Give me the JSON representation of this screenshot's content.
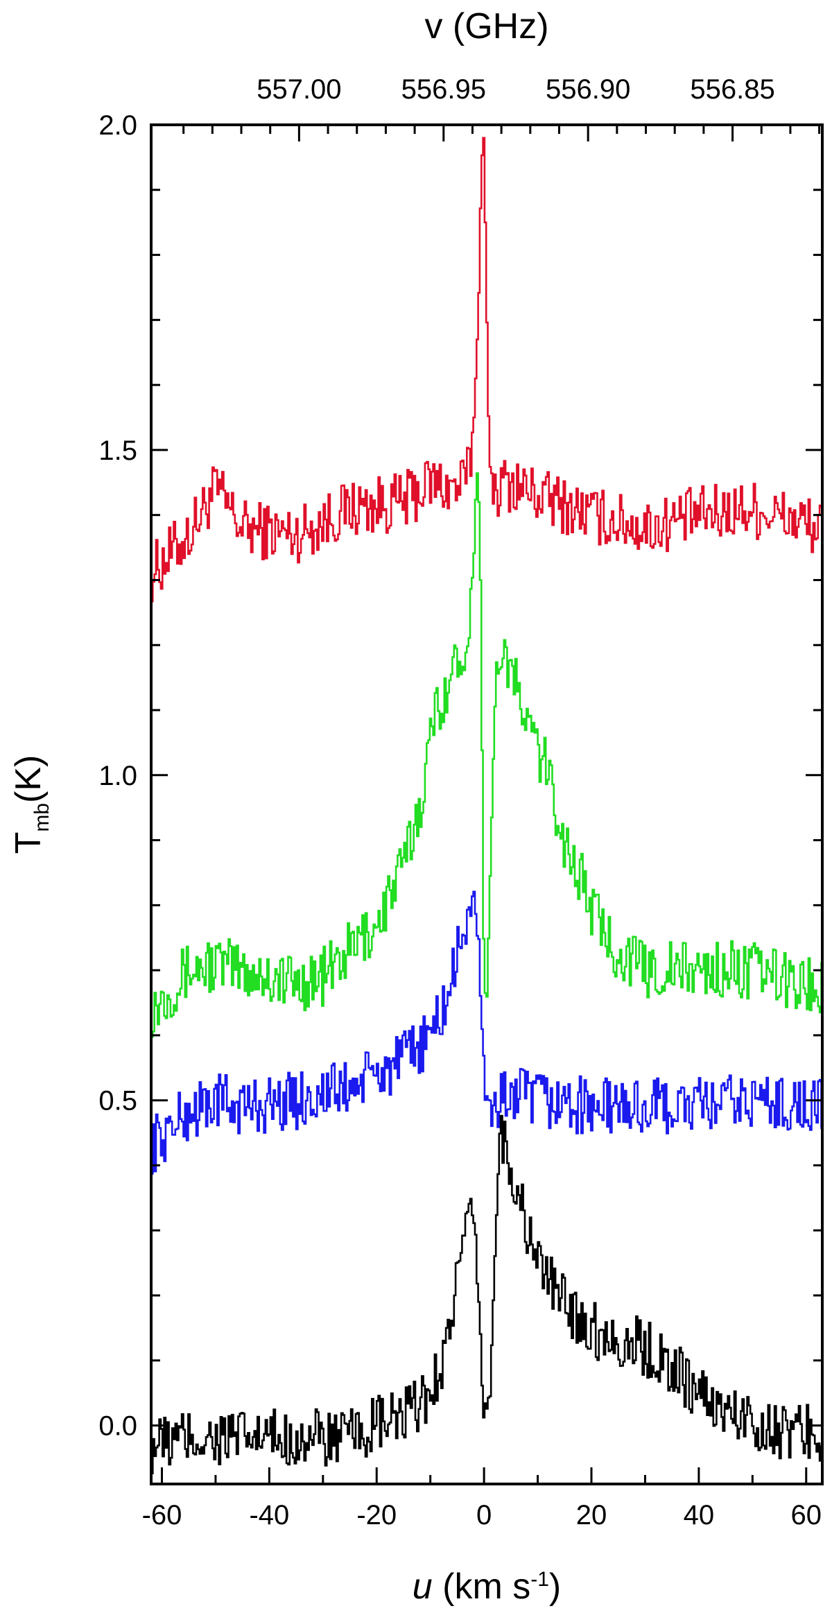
{
  "chart_data": {
    "type": "line",
    "top_axis": {
      "label": "v (GHz)",
      "tick_labels": [
        "557.00",
        "556.95",
        "556.90",
        "556.85"
      ],
      "ticks_ghz": [
        557.0,
        556.95,
        556.9,
        556.85
      ],
      "rest_frequency_ghz": 556.936,
      "velocity_per_ghz": -538.2
    },
    "x_axis": {
      "label_italic": "u",
      "label_rest": " (km s",
      "label_sup": "-1",
      "label_end": ")",
      "range": [
        -62,
        63
      ],
      "tick_labels": [
        "-60",
        "-40",
        "-20",
        "0",
        "20",
        "40",
        "60"
      ],
      "ticks": [
        -60,
        -40,
        -20,
        0,
        20,
        40,
        60
      ]
    },
    "y_axis": {
      "label_main": "T",
      "label_sub": "mb",
      "label_end": "(K)",
      "range": [
        -0.09,
        2.0
      ],
      "tick_labels": [
        "0.0",
        "0.5",
        "1.0",
        "1.5",
        "2.0"
      ],
      "ticks": [
        0.0,
        0.5,
        1.0,
        1.5,
        2.0
      ]
    },
    "series": [
      {
        "color": "#e0102a",
        "style": "histogram",
        "points": [
          [
            -62,
            1.31
          ],
          [
            -55,
            1.37
          ],
          [
            -50,
            1.44
          ],
          [
            -45,
            1.38
          ],
          [
            -35,
            1.37
          ],
          [
            -25,
            1.41
          ],
          [
            -15,
            1.42
          ],
          [
            -10,
            1.45
          ],
          [
            -5,
            1.44
          ],
          [
            -3,
            1.46
          ],
          [
            -2,
            1.52
          ],
          [
            -1,
            1.72
          ],
          [
            -0.4,
            1.98
          ],
          [
            0,
            1.98
          ],
          [
            0.5,
            1.72
          ],
          [
            1,
            1.48
          ],
          [
            2,
            1.44
          ],
          [
            5,
            1.45
          ],
          [
            10,
            1.43
          ],
          [
            20,
            1.4
          ],
          [
            30,
            1.38
          ],
          [
            40,
            1.4
          ],
          [
            50,
            1.41
          ],
          [
            63,
            1.38
          ]
        ]
      },
      {
        "color": "#22dd22",
        "style": "histogram",
        "points": [
          [
            -62,
            0.64
          ],
          [
            -55,
            0.7
          ],
          [
            -50,
            0.71
          ],
          [
            -45,
            0.7
          ],
          [
            -35,
            0.68
          ],
          [
            -30,
            0.69
          ],
          [
            -25,
            0.73
          ],
          [
            -20,
            0.77
          ],
          [
            -15,
            0.86
          ],
          [
            -12,
            0.95
          ],
          [
            -9,
            1.1
          ],
          [
            -5,
            1.17
          ],
          [
            -3,
            1.22
          ],
          [
            -2,
            1.3
          ],
          [
            -1.2,
            1.52
          ],
          [
            -0.6,
            1.28
          ],
          [
            0,
            0.7
          ],
          [
            0.5,
            0.63
          ],
          [
            1,
            0.8
          ],
          [
            2,
            1.1
          ],
          [
            3,
            1.21
          ],
          [
            5,
            1.16
          ],
          [
            8,
            1.08
          ],
          [
            12,
            1.0
          ],
          [
            15,
            0.9
          ],
          [
            18,
            0.84
          ],
          [
            22,
            0.76
          ],
          [
            25,
            0.73
          ],
          [
            30,
            0.7
          ],
          [
            40,
            0.7
          ],
          [
            50,
            0.7
          ],
          [
            63,
            0.67
          ]
        ]
      },
      {
        "color": "#1a1aee",
        "style": "histogram",
        "points": [
          [
            -62,
            0.43
          ],
          [
            -55,
            0.48
          ],
          [
            -50,
            0.5
          ],
          [
            -45,
            0.49
          ],
          [
            -35,
            0.5
          ],
          [
            -25,
            0.52
          ],
          [
            -20,
            0.54
          ],
          [
            -15,
            0.56
          ],
          [
            -10,
            0.6
          ],
          [
            -7,
            0.65
          ],
          [
            -5,
            0.72
          ],
          [
            -3,
            0.79
          ],
          [
            -2,
            0.8
          ],
          [
            -1,
            0.72
          ],
          [
            0,
            0.55
          ],
          [
            1,
            0.48
          ],
          [
            3,
            0.5
          ],
          [
            5,
            0.51
          ],
          [
            10,
            0.5
          ],
          [
            20,
            0.49
          ],
          [
            30,
            0.49
          ],
          [
            40,
            0.49
          ],
          [
            50,
            0.5
          ],
          [
            63,
            0.49
          ]
        ]
      },
      {
        "color": "#000000",
        "style": "histogram",
        "points": [
          [
            -62,
            -0.03
          ],
          [
            -55,
            -0.02
          ],
          [
            -50,
            -0.02
          ],
          [
            -45,
            -0.02
          ],
          [
            -35,
            -0.02
          ],
          [
            -25,
            -0.02
          ],
          [
            -20,
            0.0
          ],
          [
            -15,
            0.01
          ],
          [
            -10,
            0.05
          ],
          [
            -7,
            0.12
          ],
          [
            -5,
            0.23
          ],
          [
            -3,
            0.3
          ],
          [
            -2,
            0.31
          ],
          [
            -1,
            0.2
          ],
          [
            0,
            0.03
          ],
          [
            1,
            0.02
          ],
          [
            2,
            0.25
          ],
          [
            3,
            0.46
          ],
          [
            5,
            0.4
          ],
          [
            8,
            0.3
          ],
          [
            12,
            0.22
          ],
          [
            16,
            0.18
          ],
          [
            20,
            0.15
          ],
          [
            25,
            0.13
          ],
          [
            30,
            0.12
          ],
          [
            35,
            0.09
          ],
          [
            40,
            0.05
          ],
          [
            45,
            0.02
          ],
          [
            50,
            0.01
          ],
          [
            55,
            -0.01
          ],
          [
            63,
            -0.01
          ]
        ]
      }
    ]
  }
}
